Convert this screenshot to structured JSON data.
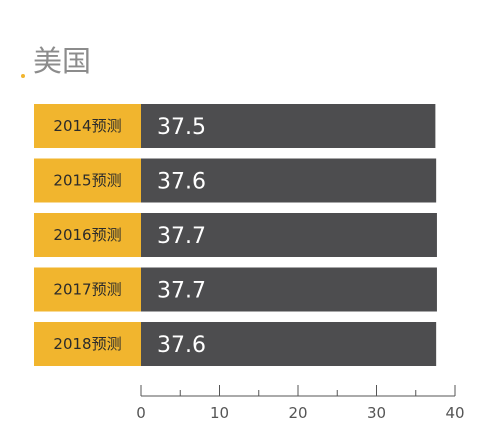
{
  "title": "美国",
  "colors": {
    "accent": "#F1B52E",
    "bar": "#4D4D4F",
    "title": "#8C8C8C",
    "axis": "#555555"
  },
  "chart_data": {
    "type": "bar",
    "orientation": "horizontal",
    "title": "美国",
    "xlabel": "",
    "ylabel": "",
    "categories": [
      "2014预测",
      "2015预测",
      "2016预测",
      "2017预测",
      "2018预测"
    ],
    "values": [
      37.5,
      37.6,
      37.7,
      37.7,
      37.6
    ],
    "value_labels": [
      "37.5",
      "37.6",
      "37.7",
      "37.7",
      "37.6"
    ],
    "xlim": [
      0,
      40
    ],
    "xticks": [
      0,
      10,
      20,
      30,
      40
    ],
    "grid": false,
    "legend": "none"
  }
}
